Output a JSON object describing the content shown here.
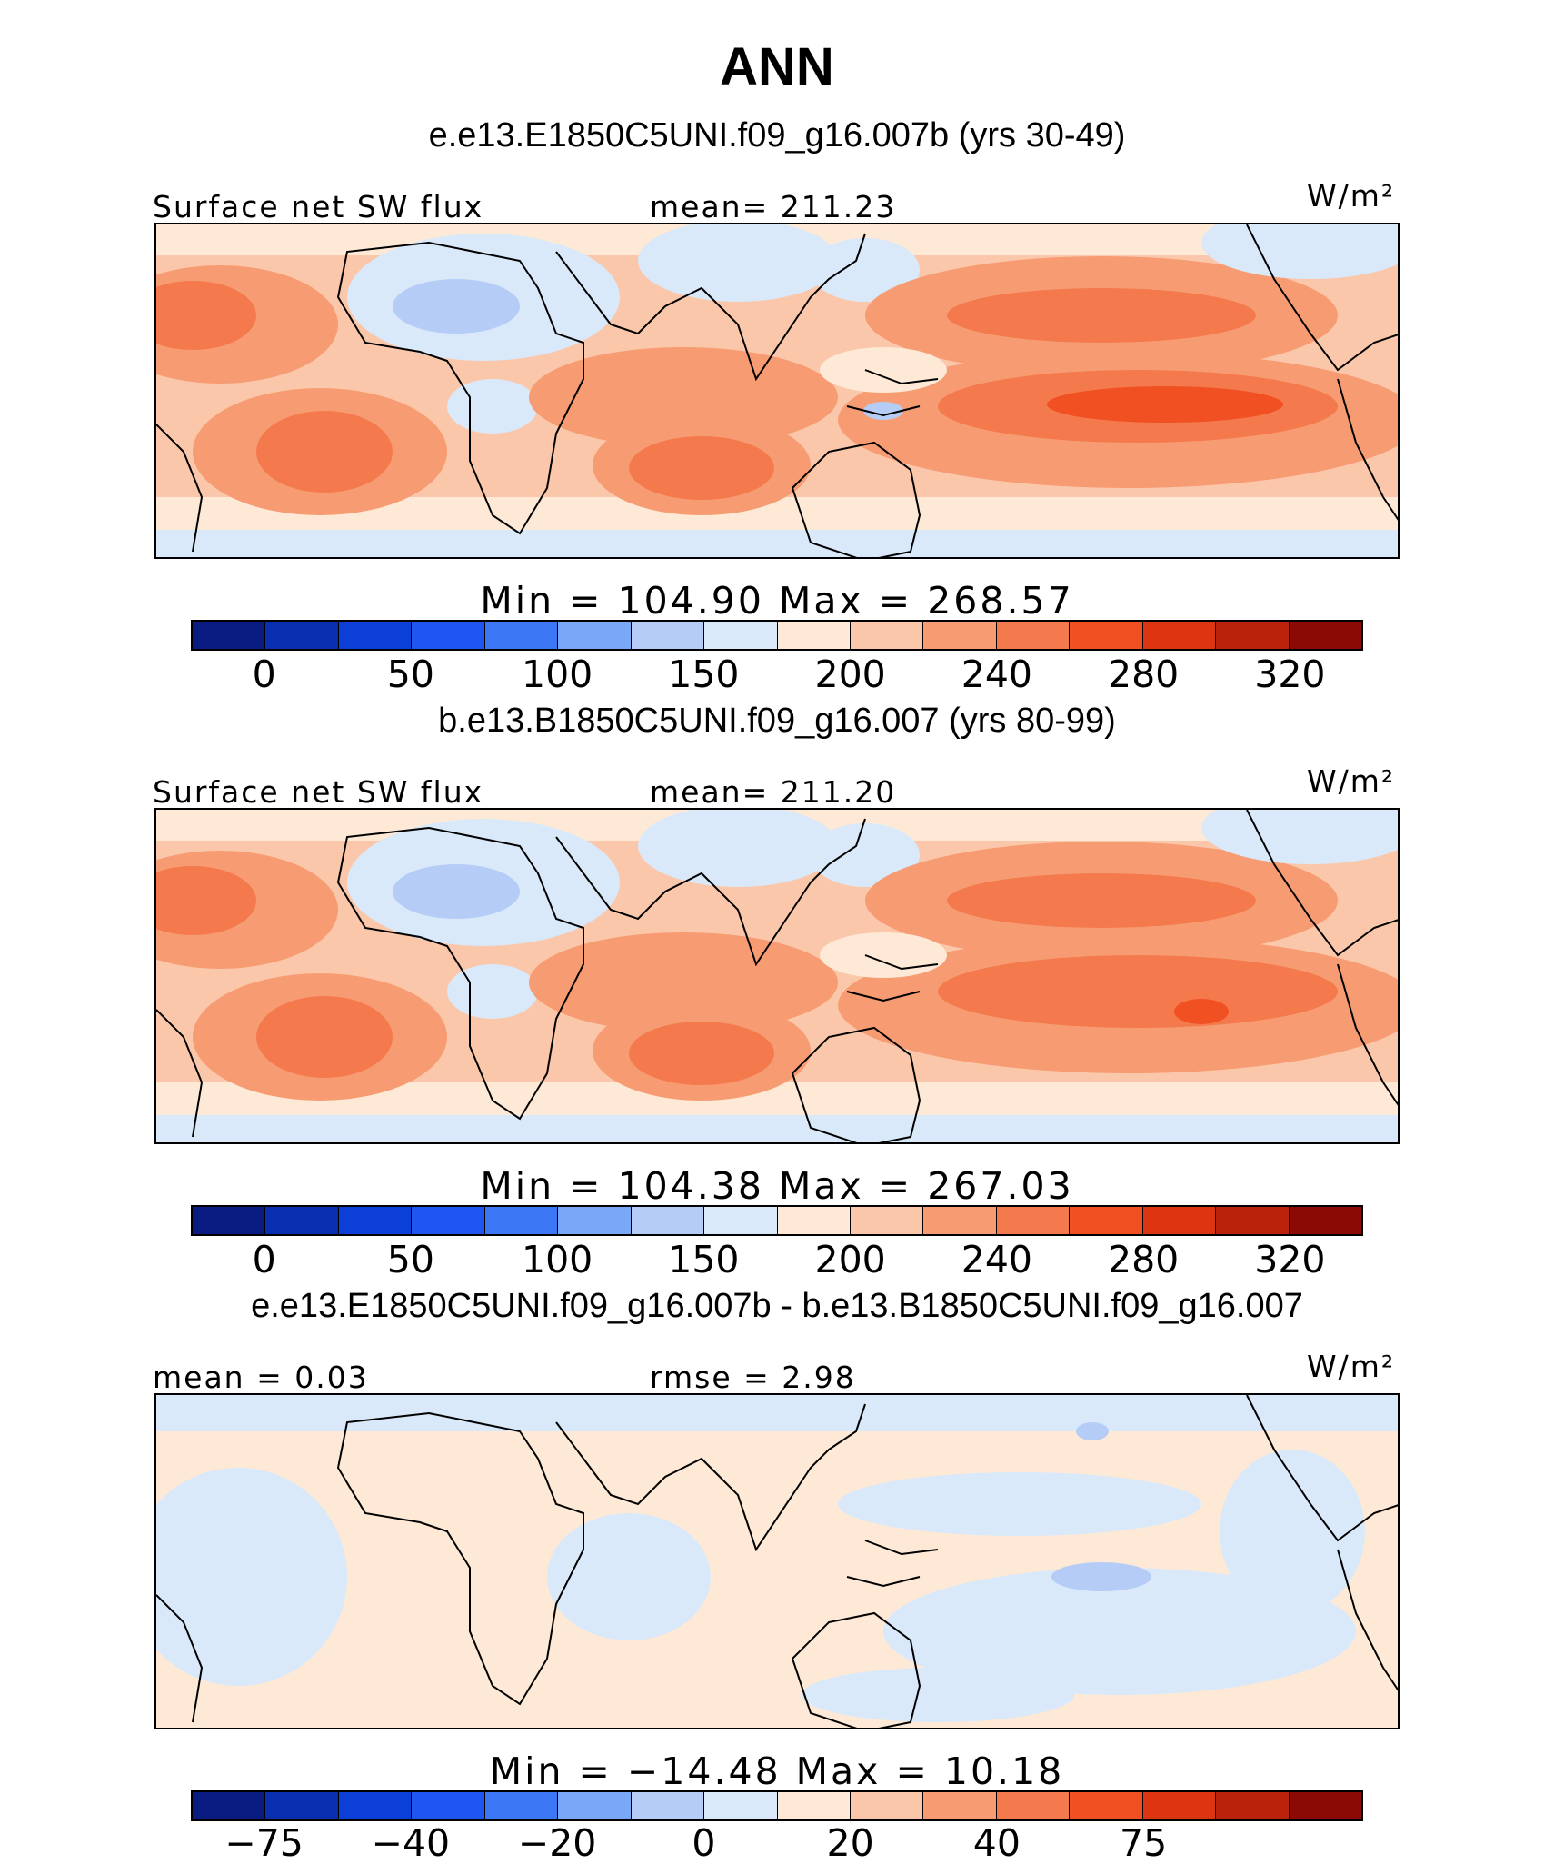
{
  "page_title": "ANN",
  "chart_data": [
    {
      "type": "heatmap",
      "title": "e.e13.E1850C5UNI.f09_g16.007b (yrs 30-49)",
      "variable": "Surface net SW flux",
      "mean_label": "mean= 211.23",
      "units": "W/m²",
      "stats": "Min  =  104.90  Max  =  268.57",
      "min": 104.9,
      "max": 268.57,
      "mean": 211.23,
      "colorbar": {
        "colors": [
          "#0a1c82",
          "#0a2eb0",
          "#0c3ed8",
          "#1f55f0",
          "#3c78f5",
          "#7aa8f7",
          "#b5cdf6",
          "#d9e9f9",
          "#fde9d6",
          "#fbc7ab",
          "#f79c72",
          "#f47a4d",
          "#f05022",
          "#dd3412",
          "#bb220b",
          "#8b0a05"
        ],
        "ticks": [
          "0",
          "50",
          "100",
          "150",
          "200",
          "240",
          "280",
          "320"
        ]
      }
    },
    {
      "type": "heatmap",
      "title": "b.e13.B1850C5UNI.f09_g16.007 (yrs 80-99)",
      "variable": "Surface net SW flux",
      "mean_label": "mean= 211.20",
      "units": "W/m²",
      "stats": "Min  =  104.38  Max  =  267.03",
      "min": 104.38,
      "max": 267.03,
      "mean": 211.2,
      "colorbar": {
        "colors": [
          "#0a1c82",
          "#0a2eb0",
          "#0c3ed8",
          "#1f55f0",
          "#3c78f5",
          "#7aa8f7",
          "#b5cdf6",
          "#d9e9f9",
          "#fde9d6",
          "#fbc7ab",
          "#f79c72",
          "#f47a4d",
          "#f05022",
          "#dd3412",
          "#bb220b",
          "#8b0a05"
        ],
        "ticks": [
          "0",
          "50",
          "100",
          "150",
          "200",
          "240",
          "280",
          "320"
        ]
      }
    },
    {
      "type": "heatmap",
      "title": "e.e13.E1850C5UNI.f09_g16.007b - b.e13.B1850C5UNI.f09_g16.007",
      "mean_label": "mean =    0.03",
      "rmse_label": "rmse =    2.98",
      "units": "W/m²",
      "stats": "Min  = −14.48  Max  =   10.18",
      "min": -14.48,
      "max": 10.18,
      "mean": 0.03,
      "rmse": 2.98,
      "colorbar": {
        "colors": [
          "#0a1c82",
          "#0a2eb0",
          "#0c3ed8",
          "#1f55f0",
          "#3c78f5",
          "#7aa8f7",
          "#b5cdf6",
          "#d9e9f9",
          "#fde9d6",
          "#fbc7ab",
          "#f79c72",
          "#f47a4d",
          "#f05022",
          "#dd3412",
          "#bb220b",
          "#8b0a05"
        ],
        "ticks": [
          "−75",
          "−40",
          "−20",
          "0",
          "20",
          "40",
          "75"
        ]
      }
    }
  ]
}
